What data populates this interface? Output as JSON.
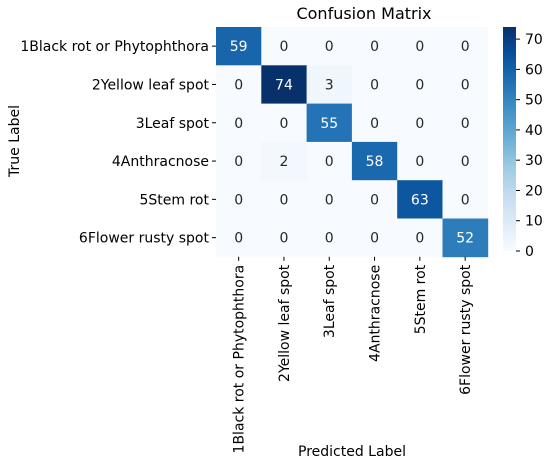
{
  "chart_data": {
    "type": "heatmap",
    "title": "Confusion Matrix",
    "xlabel": "Predicted Label",
    "ylabel": "True Label",
    "x_categories": [
      "1Black rot or Phytophthora",
      "2Yellow leaf spot",
      "3Leaf spot",
      "4Anthracnose",
      "5Stem rot",
      "6Flower rusty spot"
    ],
    "y_categories": [
      "1Black rot or Phytophthora",
      "2Yellow leaf spot",
      "3Leaf spot",
      "4Anthracnose",
      "5Stem rot",
      "6Flower rusty spot"
    ],
    "values": [
      [
        59,
        0,
        0,
        0,
        0,
        0
      ],
      [
        0,
        74,
        3,
        0,
        0,
        0
      ],
      [
        0,
        0,
        55,
        0,
        0,
        0
      ],
      [
        0,
        2,
        0,
        58,
        0,
        0
      ],
      [
        0,
        0,
        0,
        0,
        63,
        0
      ],
      [
        0,
        0,
        0,
        0,
        0,
        52
      ]
    ],
    "colorbar": {
      "range": [
        0,
        74
      ],
      "ticks": [
        0,
        10,
        20,
        30,
        40,
        50,
        60,
        70
      ]
    },
    "colormap": [
      "#f7fbff",
      "#deebf7",
      "#c6dbef",
      "#9ecae1",
      "#6baed6",
      "#4292c6",
      "#2171b5",
      "#08519c",
      "#08306b"
    ],
    "label_dark_color": "#262626",
    "label_light_color": "#ffffff"
  }
}
